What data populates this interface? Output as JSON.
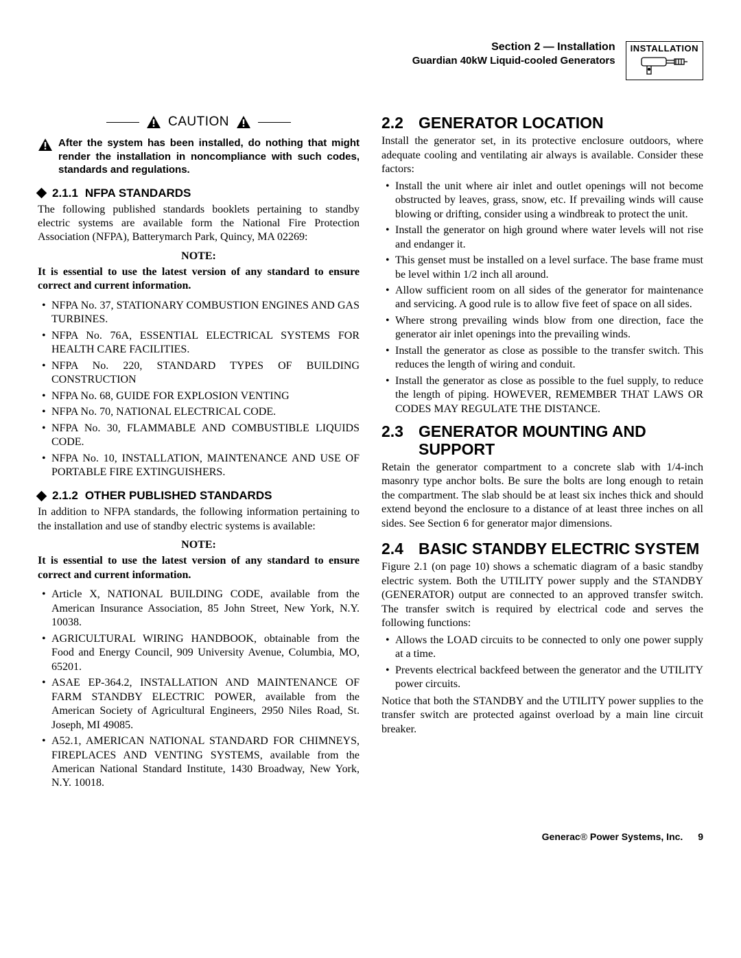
{
  "header": {
    "section": "Section 2 — Installation",
    "subtitle": "Guardian 40kW Liquid-cooled Generators",
    "badge_label": "INSTALLATION"
  },
  "caution": {
    "label": "CAUTION",
    "text": "After the system has been installed, do nothing that might render the installation in noncompliance with such codes, standards and regulations."
  },
  "s211": {
    "num": "2.1.1",
    "title": "NFPA STANDARDS",
    "intro": "The following published standards booklets pertaining to standby electric systems are available form the National Fire Protection Association (NFPA), Batterymarch Park, Quincy, MA 02269:",
    "note_label": "NOTE:",
    "note_text": "It is essential to use the latest version of any standard to ensure correct and current information.",
    "items": [
      "NFPA No. 37, STATIONARY COMBUSTION ENGINES AND GAS TURBINES.",
      "NFPA No. 76A, ESSENTIAL ELECTRICAL SYSTEMS FOR HEALTH CARE FACILITIES.",
      "NFPA No. 220, STANDARD TYPES OF BUILDING CONSTRUCTION",
      "NFPA No. 68, GUIDE FOR EXPLOSION VENTING",
      "NFPA No. 70, NATIONAL ELECTRICAL CODE.",
      "NFPA No. 30, FLAMMABLE AND COMBUSTIBLE LIQUIDS CODE.",
      "NFPA No. 10, INSTALLATION, MAINTENANCE AND USE OF PORTABLE FIRE EXTINGUISHERS."
    ]
  },
  "s212": {
    "num": "2.1.2",
    "title": "OTHER PUBLISHED STANDARDS",
    "intro": "In addition to NFPA standards, the following information pertaining to the installation and use of standby electric systems is available:",
    "note_label": "NOTE:",
    "note_text": "It is essential to use the latest version of any standard to ensure correct and current information.",
    "items": [
      "Article X, NATIONAL BUILDING CODE, available from the American Insurance Association, 85 John Street, New York, N.Y. 10038.",
      "AGRICULTURAL WIRING HANDBOOK, obtainable from the Food and Energy Council, 909 University Avenue, Columbia, MO, 65201.",
      "ASAE EP-364.2, INSTALLATION AND MAINTENANCE OF FARM STANDBY ELECTRIC POWER, available from the American Society of Agricultural Engineers, 2950 Niles Road, St. Joseph, MI 49085.",
      "A52.1, AMERICAN NATIONAL STANDARD FOR CHIMNEYS, FIREPLACES AND VENTING SYSTEMS, available from the American National Standard Institute, 1430 Broadway, New York, N.Y. 10018."
    ]
  },
  "s22": {
    "num": "2.2",
    "title": "GENERATOR LOCATION",
    "intro": "Install the generator set, in its protective enclosure outdoors, where adequate cooling and ventilating air always is available. Consider these factors:",
    "items": [
      "Install the unit where air inlet and outlet openings will not become obstructed by leaves, grass, snow, etc. If prevailing winds will cause blowing or drifting, consider using a windbreak to protect the unit.",
      "Install the generator on high ground where water levels will not rise and endanger it.",
      "This genset must be installed on a level surface. The base frame must be level within 1/2 inch all around.",
      "Allow sufficient room on all sides of the generator for maintenance and servicing. A good rule is to allow five feet of space on all sides.",
      "Where strong prevailing winds blow from one direction, face the generator air inlet openings into the prevailing winds.",
      "Install the generator as close as possible to the transfer switch. This reduces the length of wiring and conduit.",
      "Install the generator as close as possible to the fuel supply, to reduce the length of piping. HOWEVER, REMEMBER THAT LAWS OR CODES MAY REGULATE THE DISTANCE."
    ]
  },
  "s23": {
    "num": "2.3",
    "title": "GENERATOR MOUNTING AND SUPPORT",
    "text": "Retain the generator compartment to a concrete slab with 1/4-inch masonry type anchor bolts. Be sure the bolts are long enough to retain the compartment. The slab should be at least six inches thick and should extend beyond the enclosure to a distance of at least three inches on all sides. See Section 6 for generator major dimensions."
  },
  "s24": {
    "num": "2.4",
    "title": "BASIC STANDBY ELECTRIC SYSTEM",
    "intro": "Figure 2.1 (on page 10) shows a schematic diagram of a basic standby electric system. Both the UTILITY power supply and the STANDBY (GENERATOR) output are connected to an approved transfer switch. The transfer switch is required by electrical code and serves the following functions:",
    "items": [
      "Allows the LOAD circuits to be connected to only one power supply at a time.",
      "Prevents electrical backfeed between the generator and the UTILITY power circuits."
    ],
    "outro": "Notice that both the STANDBY and the UTILITY power supplies to the transfer switch are protected against overload by a main line circuit breaker."
  },
  "footer": {
    "brand": "Generac",
    "reg": "®",
    "company": " Power Systems, Inc.",
    "page": "9"
  }
}
